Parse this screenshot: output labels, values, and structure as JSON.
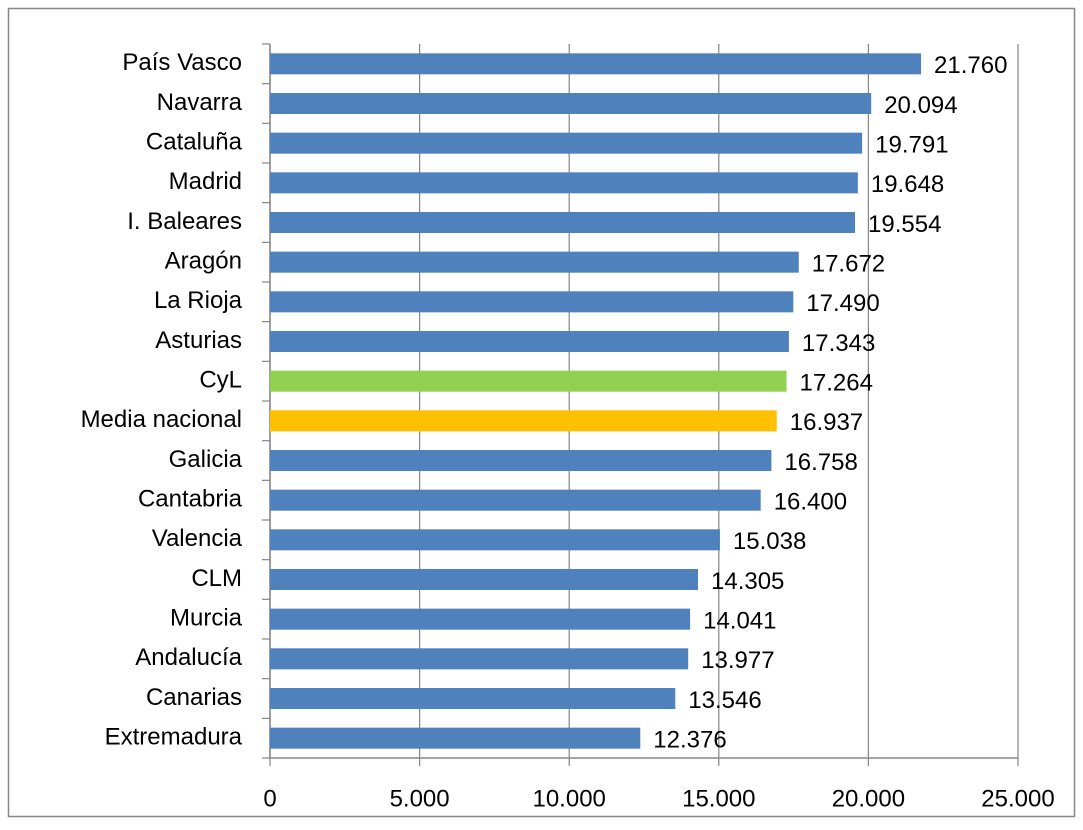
{
  "chart_data": {
    "type": "bar",
    "orientation": "horizontal",
    "categories": [
      "País Vasco",
      "Navarra",
      "Cataluña",
      "Madrid",
      "I. Baleares",
      "Aragón",
      "La Rioja",
      "Asturias",
      "CyL",
      "Media nacional",
      "Galicia",
      "Cantabria",
      "Valencia",
      "CLM",
      "Murcia",
      "Andalucía",
      "Canarias",
      "Extremadura"
    ],
    "values": [
      21760,
      20094,
      19791,
      19648,
      19554,
      17672,
      17490,
      17343,
      17264,
      16937,
      16758,
      16400,
      15038,
      14305,
      14041,
      13977,
      13546,
      12376
    ],
    "value_labels": [
      "21.760",
      "20.094",
      "19.791",
      "19.648",
      "19.554",
      "17.672",
      "17.490",
      "17.343",
      "17.264",
      "16.937",
      "16.758",
      "16.400",
      "15.038",
      "14.305",
      "14.041",
      "13.977",
      "13.546",
      "12.376"
    ],
    "colors": [
      "#4f81bd",
      "#4f81bd",
      "#4f81bd",
      "#4f81bd",
      "#4f81bd",
      "#4f81bd",
      "#4f81bd",
      "#4f81bd",
      "#92d050",
      "#ffc000",
      "#4f81bd",
      "#4f81bd",
      "#4f81bd",
      "#4f81bd",
      "#4f81bd",
      "#4f81bd",
      "#4f81bd",
      "#4f81bd"
    ],
    "xlim": [
      0,
      25000
    ],
    "xticks": [
      0,
      {
        "value": 5000,
        "label": "5.000"
      },
      {
        "value": 10000,
        "label": "10.000"
      },
      {
        "value": 15000,
        "label": "15.000"
      },
      {
        "value": 20000,
        "label": "20.000"
      },
      {
        "value": 25000,
        "label": "25.000"
      }
    ],
    "grid": true
  }
}
